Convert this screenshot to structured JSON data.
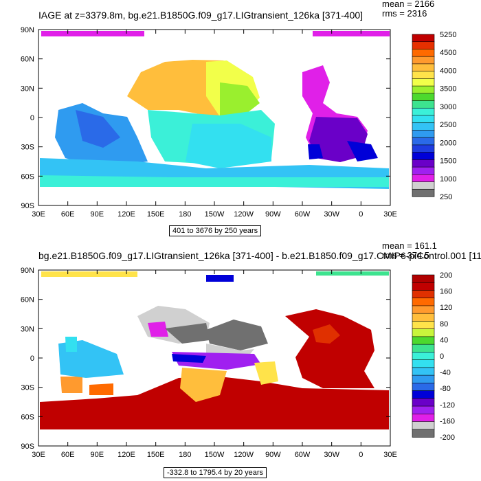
{
  "colors": {
    "ocean_white": "#ffffff",
    "axis": "#000000"
  },
  "axes": {
    "lon_labels": [
      "30E",
      "60E",
      "90E",
      "120E",
      "150E",
      "180",
      "150W",
      "120W",
      "90W",
      "60W",
      "30W",
      "0",
      "30E"
    ],
    "lat_labels": [
      "90N",
      "60N",
      "30N",
      "0",
      "30S",
      "60S",
      "90S"
    ]
  },
  "panels": [
    {
      "title": "IAGE at z=3379.8m, bg.e21.B1850G.f09_g17.LIGtransient_126ka [371-400]",
      "stats": [
        "mean = 2166",
        "rms = 2316"
      ],
      "range": "401 to 3676 by 250 years",
      "colorbar_labels": [
        "5250",
        "4500",
        "4000",
        "3500",
        "3000",
        "2500",
        "2000",
        "1500",
        "1000",
        "250"
      ],
      "colorbar_colors": [
        "#c00000",
        "#e63000",
        "#ff6a00",
        "#ff9a2e",
        "#ffbe3c",
        "#ffe34a",
        "#f2ff4a",
        "#9aef2e",
        "#4cd92e",
        "#3de38f",
        "#3bf0d8",
        "#33e0f0",
        "#33c3f5",
        "#2f9bf0",
        "#2a6ae8",
        "#1e3ce0",
        "#0000d8",
        "#6a00c8",
        "#a020f0",
        "#e020e8",
        "#d0d0d0",
        "#707070"
      ]
    },
    {
      "title": "bg.e21.B1850G.f09_g17.LIGtransient_126ka [371-400] - b.e21.B1850.f09_g17.CMIP6-piControl.001 [11",
      "stats": [
        "mean = 161.1",
        "rms = 374.5"
      ],
      "range": "-332.8 to 1795.4 by 20 years",
      "colorbar_labels": [
        "200",
        "160",
        "120",
        "80",
        "40",
        "0",
        "-40",
        "-80",
        "-120",
        "-160",
        "-200"
      ],
      "colorbar_colors": [
        "#b00000",
        "#c00000",
        "#e03000",
        "#ff6a00",
        "#ff9a2e",
        "#ffbe3c",
        "#ffe34a",
        "#c8f53c",
        "#4cd92e",
        "#3de38f",
        "#3bf0d8",
        "#33e0f0",
        "#33c3f5",
        "#2f9bf0",
        "#2a6ae8",
        "#0000d8",
        "#6a00c8",
        "#a020f0",
        "#e020e8",
        "#d0d0d0",
        "#707070"
      ]
    }
  ]
}
